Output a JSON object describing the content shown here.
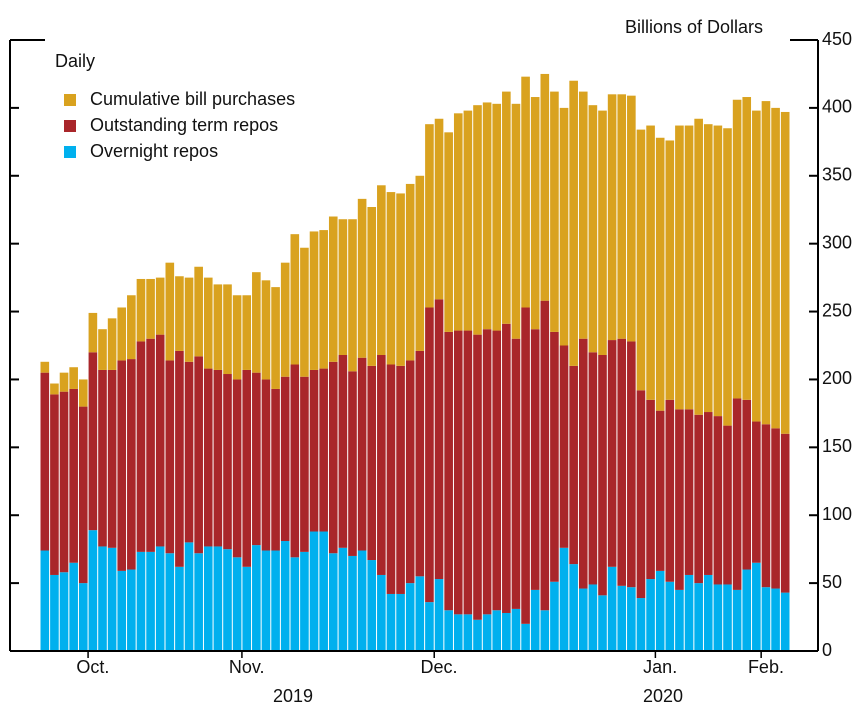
{
  "chart_data": {
    "type": "stacked_bar",
    "y_axis_label": "Billions of Dollars",
    "legend_title": "Daily",
    "categories": [
      null,
      null,
      null,
      null,
      null,
      "Oct.",
      null,
      null,
      null,
      null,
      null,
      null,
      null,
      null,
      null,
      null,
      null,
      null,
      null,
      null,
      null,
      "Nov.",
      null,
      null,
      null,
      null,
      null,
      null,
      null,
      null,
      null,
      null,
      null,
      null,
      null,
      null,
      null,
      null,
      null,
      null,
      null,
      "Dec.",
      null,
      null,
      null,
      null,
      null,
      null,
      null,
      null,
      null,
      null,
      null,
      null,
      null,
      null,
      null,
      null,
      null,
      null,
      null,
      null,
      null,
      null,
      "Jan.",
      null,
      null,
      null,
      null,
      null,
      null,
      null,
      null,
      null,
      null,
      "Feb.",
      null,
      null
    ],
    "year_labels": [
      "2019",
      "2020"
    ],
    "series": [
      {
        "name": "Cumulative bill purchases",
        "color": "#d9a21f",
        "values": [
          8,
          8,
          14,
          16,
          20,
          29,
          30,
          38,
          39,
          47,
          46,
          44,
          42,
          72,
          55,
          62,
          66,
          67,
          63,
          66,
          62,
          55,
          74,
          73,
          75,
          84,
          96,
          95,
          102,
          102,
          107,
          100,
          112,
          117,
          117,
          125,
          127,
          127,
          130,
          129,
          135,
          133,
          147,
          160,
          162,
          169,
          167,
          167,
          171,
          173,
          170,
          171,
          167,
          177,
          175,
          210,
          182,
          182,
          180,
          181,
          180,
          181,
          192,
          202,
          201,
          191,
          209,
          209,
          218,
          212,
          214,
          219,
          220,
          223,
          229,
          238,
          236,
          237
        ]
      },
      {
        "name": "Outstanding term repos",
        "color": "#a9262a",
        "values": [
          131,
          133,
          133,
          128,
          130,
          131,
          130,
          131,
          155,
          155,
          155,
          157,
          156,
          142,
          159,
          133,
          145,
          131,
          130,
          129,
          131,
          145,
          127,
          126,
          119,
          121,
          142,
          129,
          119,
          120,
          141,
          142,
          136,
          142,
          143,
          162,
          169,
          168,
          164,
          166,
          217,
          206,
          205,
          209,
          209,
          210,
          210,
          206,
          213,
          199,
          233,
          192,
          228,
          184,
          149,
          146,
          184,
          171,
          177,
          167,
          182,
          181,
          153,
          132,
          118,
          134,
          133,
          122,
          124,
          120,
          124,
          117,
          141,
          125,
          104,
          120,
          118,
          117
        ]
      },
      {
        "name": "Overnight repos",
        "color": "#00b0ee",
        "values": [
          74,
          56,
          58,
          65,
          50,
          89,
          77,
          76,
          59,
          60,
          73,
          73,
          77,
          72,
          62,
          80,
          72,
          77,
          77,
          75,
          69,
          62,
          78,
          74,
          74,
          81,
          69,
          73,
          88,
          88,
          72,
          76,
          70,
          74,
          67,
          56,
          42,
          42,
          50,
          55,
          36,
          53,
          30,
          27,
          27,
          23,
          27,
          30,
          28,
          31,
          20,
          45,
          30,
          51,
          76,
          64,
          46,
          49,
          41,
          62,
          48,
          47,
          39,
          53,
          59,
          51,
          45,
          56,
          50,
          56,
          49,
          49,
          45,
          60,
          65,
          47,
          46,
          43
        ]
      }
    ],
    "ylim": [
      0,
      450
    ],
    "yticks": [
      0,
      50,
      100,
      150,
      200,
      250,
      300,
      350,
      400,
      450
    ]
  }
}
